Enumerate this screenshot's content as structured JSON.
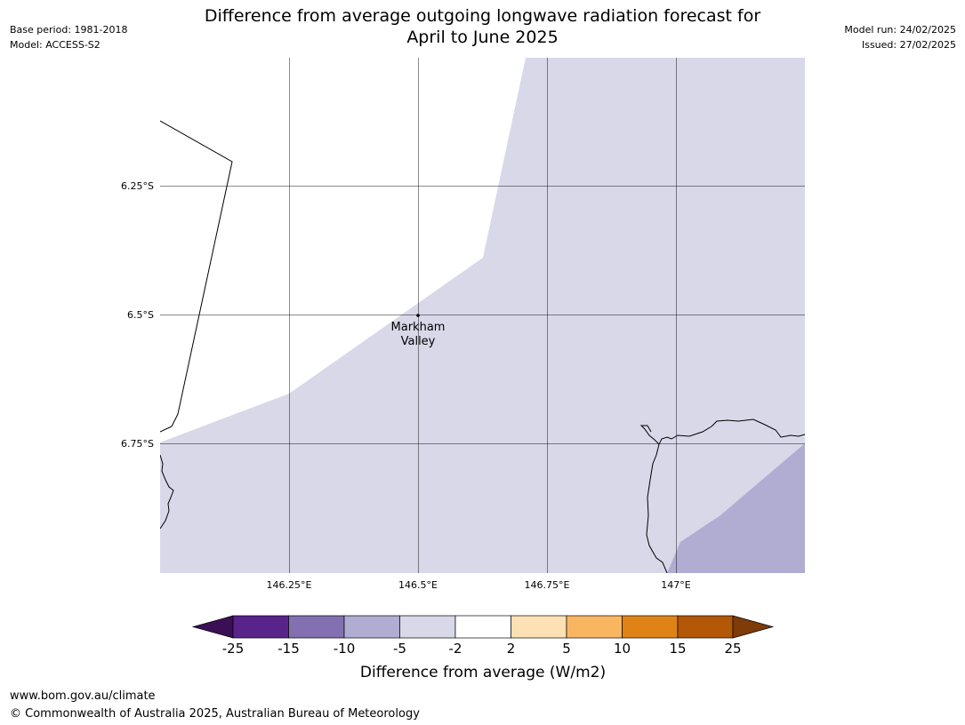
{
  "header": {
    "base_period": "Base period: 1981-2018",
    "model": "Model: ACCESS-S2",
    "title_line1": "Difference from average outgoing longwave radiation forecast for",
    "title_line2": "April to June 2025",
    "model_run": "Model run: 24/02/2025",
    "issued": "Issued: 27/02/2025"
  },
  "map": {
    "lon_ticks": [
      "146.25°E",
      "146.5°E",
      "146.75°E",
      "147°E"
    ],
    "lat_ticks": [
      "6.25°S",
      "6.5°S",
      "6.75°S"
    ],
    "place_label_line1": "Markham",
    "place_label_line2": "Valley",
    "fill_colors": {
      "minus5_to_minus2": "#d8d8e9",
      "minus10_to_minus5": "#b1acd2",
      "no_change": "#ffffff"
    }
  },
  "legend": {
    "title": "Difference from average (W/m2)",
    "tick_labels": [
      "-25",
      "-15",
      "-10",
      "-5",
      "-2",
      "2",
      "5",
      "10",
      "15",
      "25"
    ],
    "colors": [
      "#3b0f55",
      "#58238b",
      "#8370b0",
      "#b1acd2",
      "#d8d8e9",
      "#ffffff",
      "#fde0b4",
      "#f9b661",
      "#e08316",
      "#b35807",
      "#7f3b08"
    ]
  },
  "footer": {
    "url": "www.bom.gov.au/climate",
    "copyright": "© Commonwealth of Australia 2025, Australian Bureau of Meteorology"
  }
}
